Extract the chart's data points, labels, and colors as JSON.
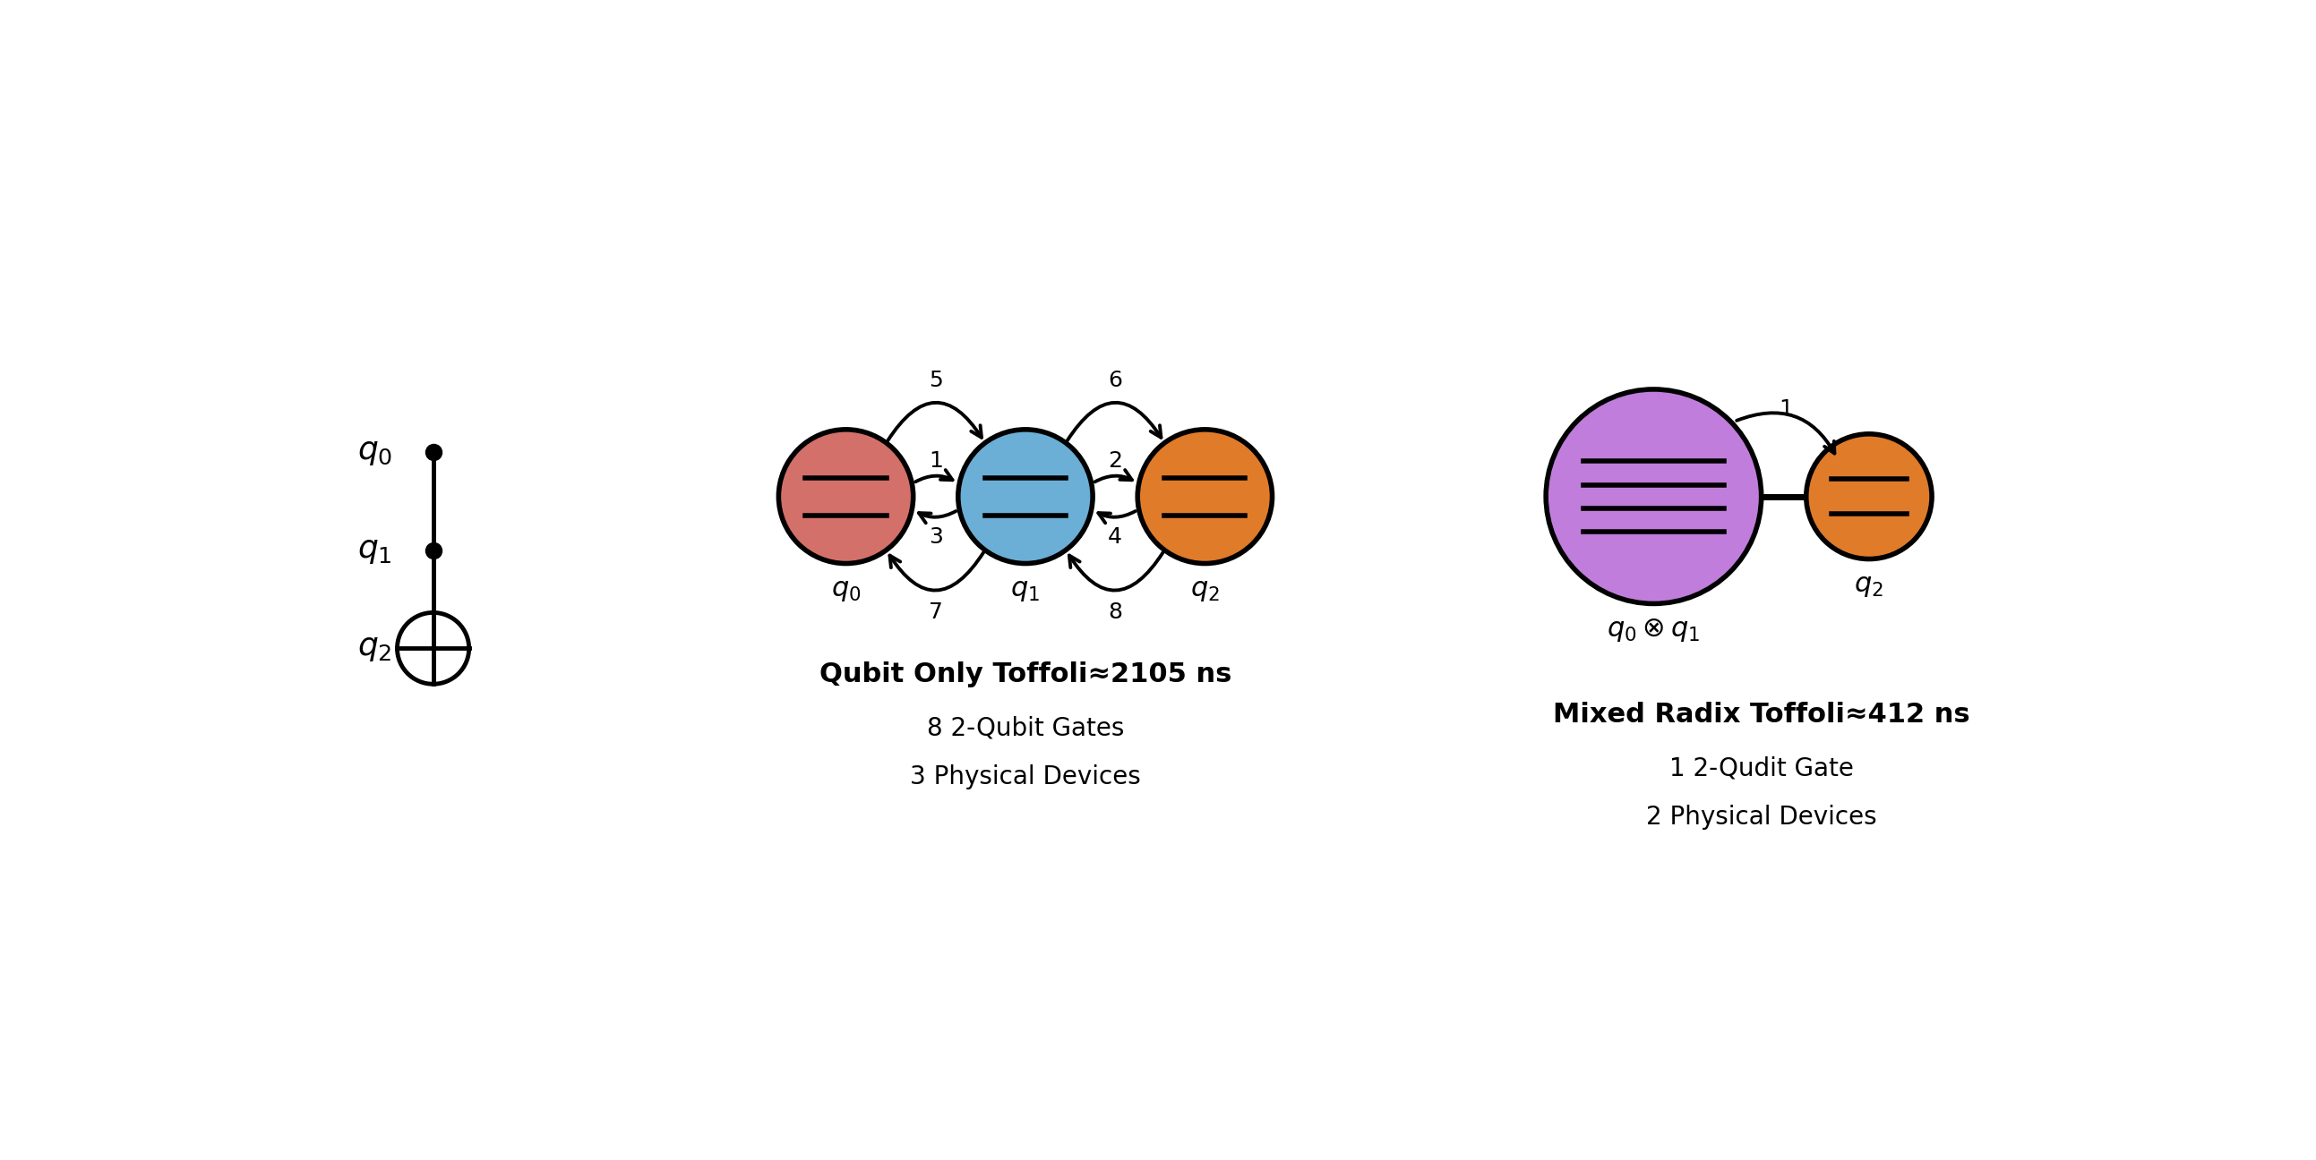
{
  "bg_color": "#ffffff",
  "fig_width": 25.86,
  "fig_height": 12.96,
  "toffoli_qubit_title": "Qubit Only Toffoli≈2105 ns",
  "toffoli_qubit_line1": "8 2-Qubit Gates",
  "toffoli_qubit_line2": "3 Physical Devices",
  "toffoli_mixed_title": "Mixed Radix Toffoli≈412 ns",
  "toffoli_mixed_line1": "1 2-Qudit Gate",
  "toffoli_mixed_line2": "2 Physical Devices",
  "node_q0_color": "#d4706a",
  "node_q1_color": "#6baed6",
  "node_q2_color": "#e07b2a",
  "node_q01_color": "#c07ddb"
}
